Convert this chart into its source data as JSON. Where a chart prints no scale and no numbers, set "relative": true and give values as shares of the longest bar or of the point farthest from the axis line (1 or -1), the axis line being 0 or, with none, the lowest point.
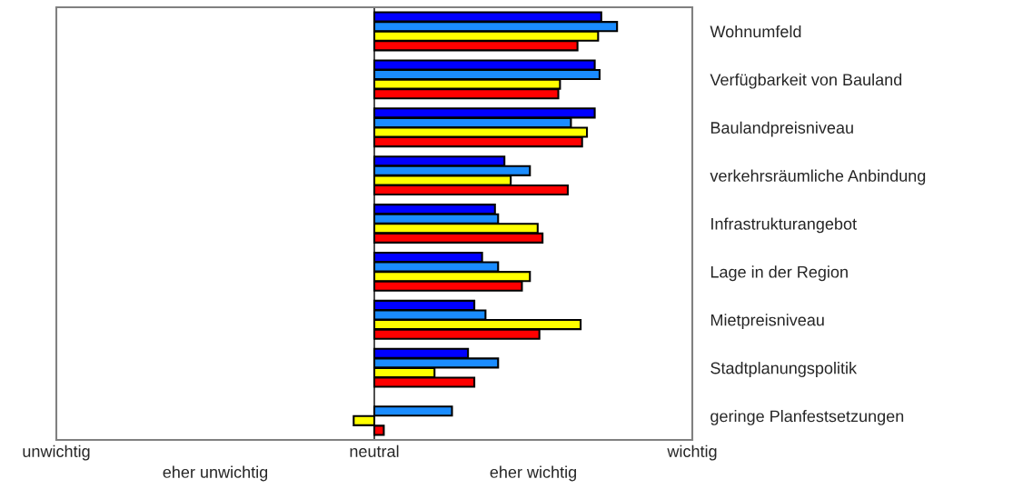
{
  "chart_data": {
    "type": "bar",
    "orientation": "horizontal",
    "relative": true,
    "categories": [
      "Wohnumfeld",
      "Verfügbarkeit von Bauland",
      "Baulandpreisniveau",
      "verkehrsräumliche Anbindung",
      "Infrastrukturangebot",
      "Lage in der Region",
      "Mietpreisniveau",
      "Stadtplanungspolitik",
      "geringe Planfestsetzungen"
    ],
    "series": [
      {
        "color": "#0000ff",
        "values": [
          0.935,
          0.908,
          0.908,
          0.536,
          0.497,
          0.444,
          0.412,
          0.386,
          null
        ]
      },
      {
        "color": "#1a8cff",
        "values": [
          1,
          0.928,
          0.81,
          0.641,
          0.51,
          0.51,
          0.458,
          0.51,
          0.32
        ]
      },
      {
        "color": "#ffff00",
        "values": [
          0.922,
          0.765,
          0.876,
          0.562,
          0.673,
          0.641,
          0.85,
          0.248,
          -0.085
        ]
      },
      {
        "color": "#ff0000",
        "values": [
          0.837,
          0.758,
          0.856,
          0.797,
          0.693,
          0.608,
          0.68,
          0.412,
          0.039
        ]
      }
    ],
    "annotations": [
      "unwichtig",
      "eher unwichtig",
      "neutral",
      "eher wichtig",
      "wichtig"
    ],
    "grid": false,
    "legend": false
  }
}
